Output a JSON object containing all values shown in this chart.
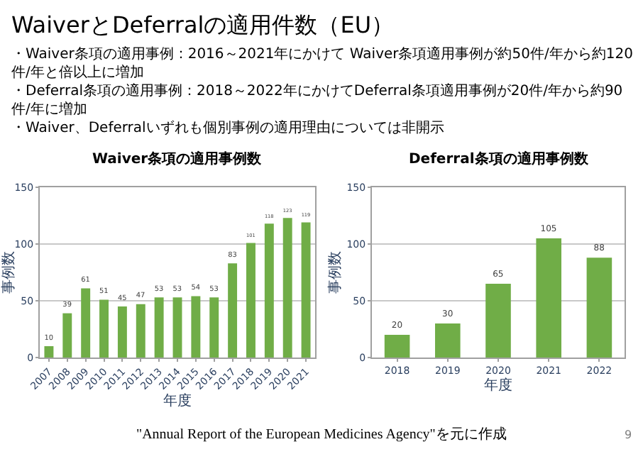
{
  "chart_data": [
    {
      "type": "bar",
      "title": "Waiver条項の適用事例数",
      "xlabel": "年度",
      "ylabel": "事例数",
      "categories": [
        "2007",
        "2008",
        "2009",
        "2010",
        "2011",
        "2012",
        "2013",
        "2014",
        "2015",
        "2016",
        "2017",
        "2018",
        "2019",
        "2020",
        "2021"
      ],
      "values": [
        10,
        39,
        61,
        51,
        45,
        47,
        53,
        53,
        54,
        53,
        83,
        101,
        118,
        123,
        119
      ],
      "color": "#70ad47",
      "ylim": [
        0,
        150
      ],
      "yticks": [
        0,
        50,
        100,
        150
      ],
      "grid": "y",
      "data_labels": true,
      "annotations": [
        "WaiverとDeferralの適用件数（EU）",
        "・Waiver条項の適用事例：2016～2021年にかけて Waiver条項適用事例が約50件/年から約120件/年と倍以上に増加",
        "・Deferral条項の適用事例：2018～2022年にかけてDeferral条項適用事例が20件/年から約90件/年に増加",
        "・Waiver、Deferralいずれも個別事例の適用理由については非開示"
      ]
    },
    {
      "type": "bar",
      "title": "Deferral条項の適用事例数",
      "xlabel": "年度",
      "ylabel": "事例数",
      "categories": [
        "2018",
        "2019",
        "2020",
        "2021",
        "2022"
      ],
      "values": [
        20,
        30,
        65,
        105,
        88
      ],
      "color": "#70ad47",
      "ylim": [
        0,
        150
      ],
      "yticks": [
        0,
        50,
        100,
        150
      ],
      "grid": "y",
      "data_labels": true,
      "annotations": [
        "\"Annual Report of the European Medicines Agency\"を元に作成",
        "9"
      ]
    }
  ]
}
